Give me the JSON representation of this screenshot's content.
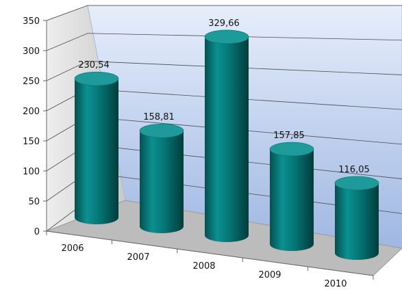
{
  "chart_data": {
    "type": "bar",
    "style": "3d-cylinder",
    "categories": [
      "2006",
      "2007",
      "2008",
      "2009",
      "2010"
    ],
    "values": [
      230.54,
      158.81,
      329.66,
      157.85,
      116.05
    ],
    "value_labels": [
      "230,54",
      "158,81",
      "329,66",
      "157,85",
      "116,05"
    ],
    "yticks": [
      "0",
      "50",
      "100",
      "150",
      "200",
      "250",
      "300",
      "350"
    ],
    "ylim": [
      0,
      350
    ],
    "grid": true,
    "legend": false,
    "title": "",
    "xlabel": "",
    "ylabel": "",
    "colors": {
      "bar": "#007a7a",
      "bar_top": "#1f9a9a",
      "wall": "#c9d9f2",
      "floor": "#bdbdbd",
      "gridline": "#4a4a4a"
    }
  }
}
